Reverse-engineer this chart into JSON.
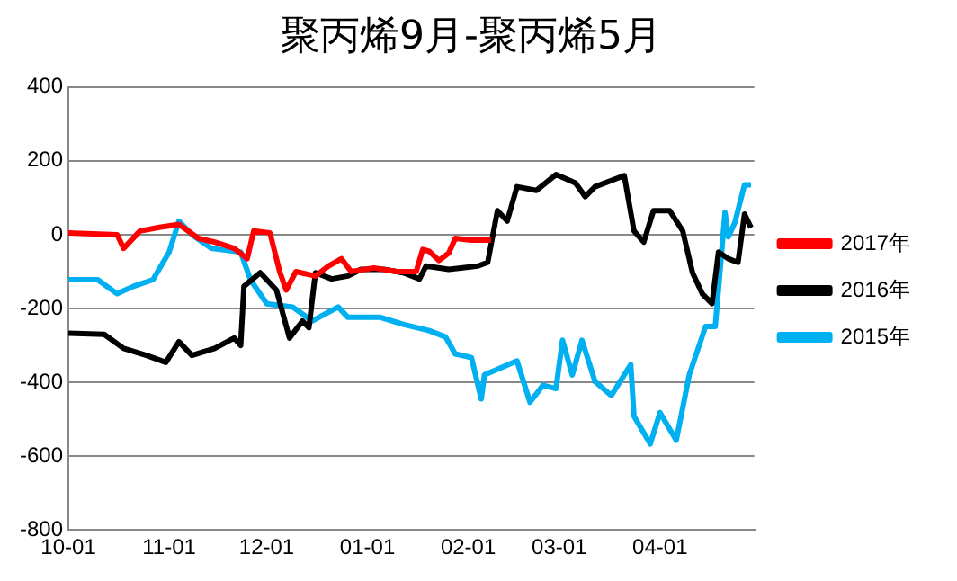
{
  "chart_data": {
    "type": "line",
    "title": "聚丙烯9月-聚丙烯5月",
    "xlim": [
      "2016-10-01",
      "2017-04-30"
    ],
    "xticks": [
      {
        "value": "2016-10-01",
        "label": "10-01"
      },
      {
        "value": "2016-11-01",
        "label": "11-01"
      },
      {
        "value": "2016-12-01",
        "label": "12-01"
      },
      {
        "value": "2017-01-01",
        "label": "01-01"
      },
      {
        "value": "2017-02-01",
        "label": "02-01"
      },
      {
        "value": "2017-03-01",
        "label": "03-01"
      },
      {
        "value": "2017-04-01",
        "label": "04-01"
      }
    ],
    "ylim": [
      -800,
      400
    ],
    "yticks": [
      -800,
      -600,
      -400,
      -200,
      0,
      200,
      400
    ],
    "grid": "y",
    "legend": "right",
    "marker": "none",
    "line_style": "solid",
    "series": [
      {
        "name": "2017年",
        "color": "#ff0000",
        "x": [
          "2016-10-01",
          "2016-10-16",
          "2016-10-18",
          "2016-10-23",
          "2016-10-29",
          "2016-11-04",
          "2016-11-10",
          "2016-11-15",
          "2016-11-21",
          "2016-11-25",
          "2016-11-27",
          "2016-12-02",
          "2016-12-05",
          "2016-12-07",
          "2016-12-10",
          "2016-12-16",
          "2016-12-20",
          "2016-12-24",
          "2016-12-27",
          "2017-01-03",
          "2017-01-10",
          "2017-01-16",
          "2017-01-18",
          "2017-01-20",
          "2017-01-23",
          "2017-01-26",
          "2017-01-28",
          "2017-02-02",
          "2017-02-08"
        ],
        "values": [
          5,
          0,
          -37,
          10,
          20,
          28,
          -10,
          -20,
          -37,
          -65,
          10,
          5,
          -100,
          -150,
          -100,
          -112,
          -85,
          -65,
          -100,
          -90,
          -100,
          -100,
          -40,
          -45,
          -70,
          -50,
          -10,
          -15,
          -15
        ]
      },
      {
        "name": "2016年",
        "color": "#000000",
        "x": [
          "2016-10-01",
          "2016-10-12",
          "2016-10-18",
          "2016-10-25",
          "2016-10-31",
          "2016-11-04",
          "2016-11-08",
          "2016-11-15",
          "2016-11-21",
          "2016-11-23",
          "2016-11-24",
          "2016-11-29",
          "2016-12-04",
          "2016-12-08",
          "2016-12-12",
          "2016-12-14",
          "2016-12-16",
          "2016-12-21",
          "2016-12-26",
          "2016-12-30",
          "2017-01-06",
          "2017-01-12",
          "2017-01-17",
          "2017-01-19",
          "2017-01-26",
          "2017-02-04",
          "2017-02-07",
          "2017-02-10",
          "2017-02-13",
          "2017-02-16",
          "2017-02-22",
          "2017-02-28",
          "2017-03-06",
          "2017-03-09",
          "2017-03-12",
          "2017-03-21",
          "2017-03-24",
          "2017-03-27",
          "2017-03-30",
          "2017-04-04",
          "2017-04-08",
          "2017-04-11",
          "2017-04-14",
          "2017-04-17",
          "2017-04-19",
          "2017-04-22",
          "2017-04-25",
          "2017-04-27",
          "2017-04-29"
        ],
        "values": [
          -267,
          -270,
          -308,
          -327,
          -346,
          -290,
          -327,
          -308,
          -280,
          -300,
          -140,
          -103,
          -150,
          -280,
          -234,
          -252,
          -103,
          -120,
          -112,
          -94,
          -94,
          -103,
          -120,
          -85,
          -94,
          -85,
          -75,
          65,
          37,
          130,
          120,
          163,
          140,
          103,
          130,
          160,
          10,
          -20,
          65,
          65,
          10,
          -103,
          -160,
          -187,
          -47,
          -65,
          -75,
          56,
          19
        ]
      },
      {
        "name": "2015年",
        "color": "#00b0f0",
        "x": [
          "2016-10-01",
          "2016-10-10",
          "2016-10-16",
          "2016-10-21",
          "2016-10-27",
          "2016-11-01",
          "2016-11-04",
          "2016-11-08",
          "2016-11-14",
          "2016-11-23",
          "2016-11-26",
          "2016-12-01",
          "2016-12-09",
          "2016-12-15",
          "2016-12-23",
          "2016-12-26",
          "2017-01-05",
          "2017-01-12",
          "2017-01-20",
          "2017-01-25",
          "2017-01-28",
          "2017-02-02",
          "2017-02-05",
          "2017-02-06",
          "2017-02-16",
          "2017-02-20",
          "2017-02-24",
          "2017-02-28",
          "2017-03-02",
          "2017-03-05",
          "2017-03-08",
          "2017-03-12",
          "2017-03-17",
          "2017-03-23",
          "2017-03-24",
          "2017-03-29",
          "2017-04-01",
          "2017-04-06",
          "2017-04-10",
          "2017-04-15",
          "2017-04-18",
          "2017-04-21",
          "2017-04-22",
          "2017-04-24",
          "2017-04-27",
          "2017-04-29"
        ],
        "values": [
          -122,
          -122,
          -160,
          -140,
          -122,
          -47,
          37,
          0,
          -37,
          -47,
          -122,
          -187,
          -196,
          -234,
          -196,
          -224,
          -224,
          -243,
          -260,
          -277,
          -323,
          -333,
          -445,
          -380,
          -342,
          -454,
          -408,
          -417,
          -286,
          -380,
          -286,
          -398,
          -436,
          -352,
          -492,
          -567,
          -482,
          -557,
          -380,
          -249,
          -249,
          60,
          -6,
          32,
          135,
          135
        ]
      }
    ]
  }
}
